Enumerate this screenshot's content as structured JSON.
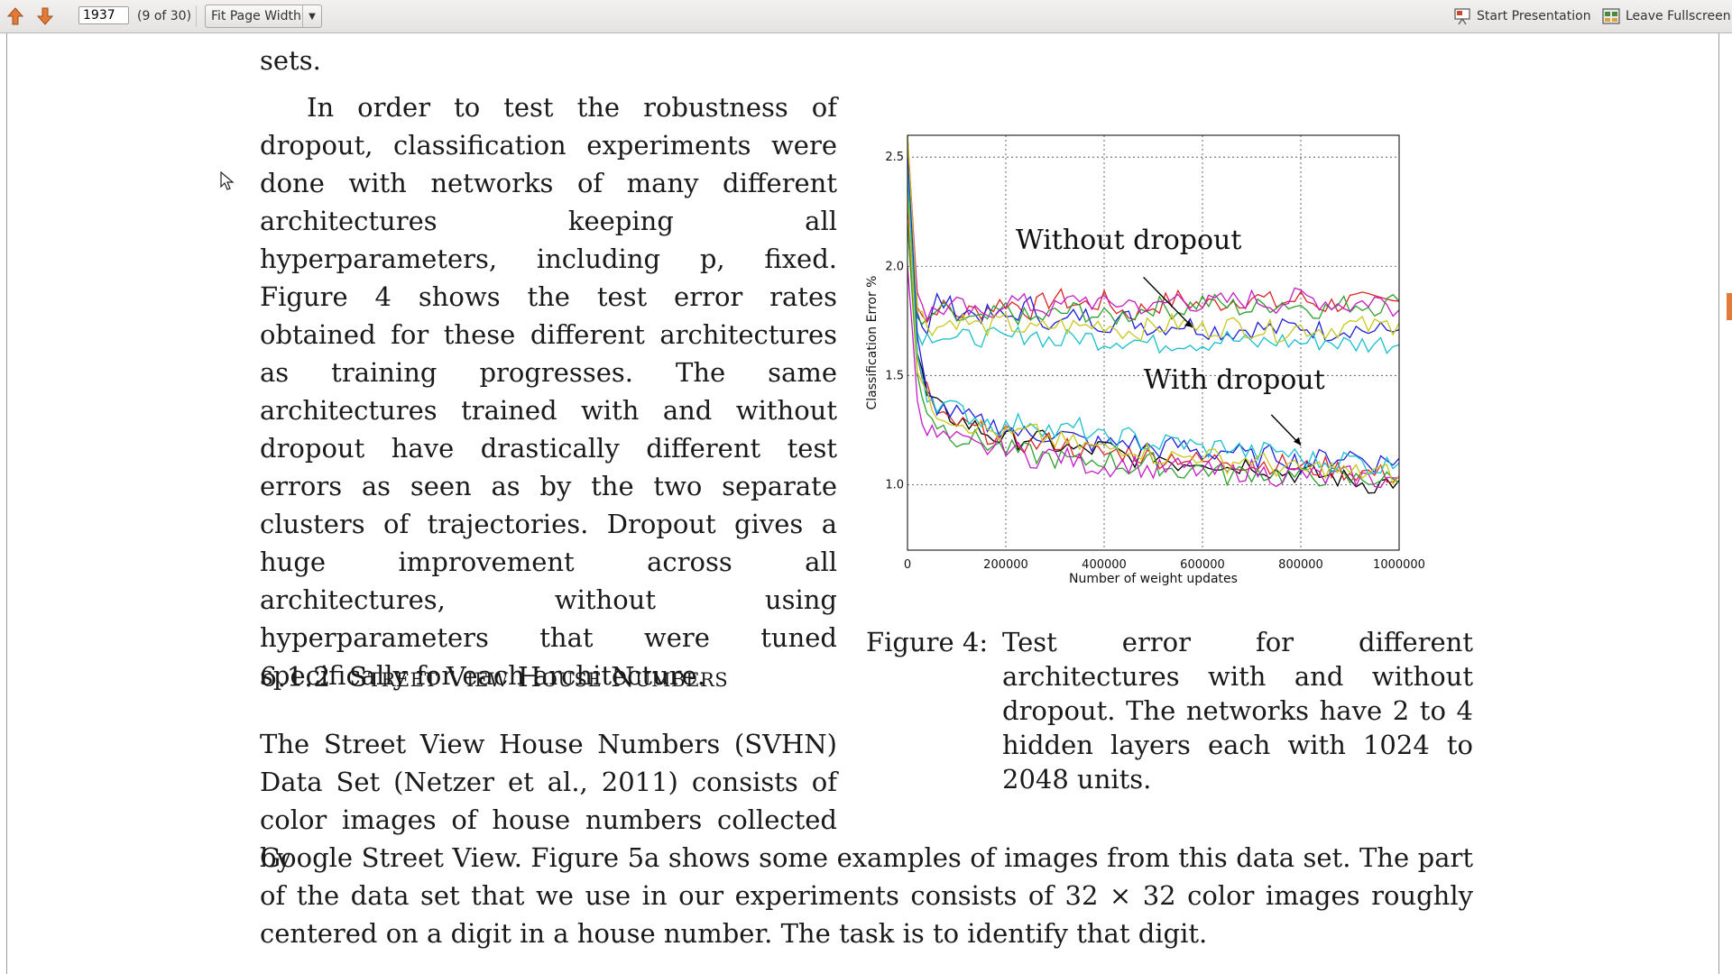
{
  "toolbar": {
    "page_value": "1937",
    "page_count": "(9 of 30)",
    "zoom_label": "Fit Page Width",
    "start_presentation": "Start Presentation",
    "leave_fullscreen": "Leave Fullscreen",
    "icons": [
      "arrow-up-icon",
      "arrow-down-icon",
      "presentation-icon",
      "fullscreen-icon"
    ],
    "accent": "#e07b39"
  },
  "document": {
    "line_top": "sets.",
    "para1": "In order to test the robustness of dropout, classification experiments were done with networks of many different architectures keeping all hyperparameters, including p, fixed. Figure 4 shows the test error rates obtained for these different architectures as training progresses. The same architectures trained with and without dropout have drastically different test errors as seen as by the two separate clusters of trajectories. Dropout gives a huge improvement across all architectures, without using hyperparameters that were tuned specifically for each architecture.",
    "section_num": "6.1.2",
    "section_title": "Street View House Numbers",
    "para2_left": "The Street View House Numbers (SVHN) Data Set (Netzer et al., 2011) consists of color images of house numbers collected by",
    "para2_full": "Google Street View. Figure 5a shows some examples of images from this data set. The part of the data set that we use in our experiments consists of 32 × 32 color images roughly centered on a digit in a house number. The task is to identify that digit.",
    "caption_label": "Figure 4:",
    "caption_text": "Test error for different architectures with and without dropout. The networks have 2 to 4 hidden layers each with 1024 to 2048 units."
  },
  "chart_data": {
    "type": "line",
    "title": "",
    "xlabel": "Number of weight updates",
    "ylabel": "Classification Error %",
    "xlim": [
      0,
      1000000
    ],
    "ylim": [
      0.7,
      2.6
    ],
    "xticks": [
      "0",
      "200000",
      "400000",
      "600000",
      "800000",
      "1000000"
    ],
    "yticks": [
      "1.0",
      "1.5",
      "2.0",
      "2.5"
    ],
    "grid": true,
    "annotations": [
      "Without dropout",
      "With dropout"
    ],
    "colors": [
      "#d62728",
      "#1f1fd6",
      "#2ca02c",
      "#c51bc5",
      "#17bfcf",
      "#c8c81a",
      "#000000"
    ],
    "series": [
      {
        "group": "without",
        "x": [
          0,
          20000,
          40000,
          60000,
          100000,
          150000,
          200000,
          250000,
          300000,
          350000,
          400000,
          450000,
          500000,
          550000,
          600000,
          650000,
          700000,
          750000,
          800000,
          850000,
          900000,
          950000,
          1000000
        ],
        "values": [
          2.6,
          1.85,
          1.75,
          1.82,
          1.78,
          1.8,
          1.84,
          1.8,
          1.86,
          1.82,
          1.84,
          1.78,
          1.82,
          1.85,
          1.82,
          1.84,
          1.86,
          1.83,
          1.85,
          1.82,
          1.84,
          1.83,
          1.84
        ]
      },
      {
        "group": "without",
        "x": [
          0,
          20000,
          40000,
          60000,
          100000,
          150000,
          200000,
          250000,
          300000,
          350000,
          400000,
          450000,
          500000,
          550000,
          600000,
          650000,
          700000,
          750000,
          800000,
          850000,
          900000,
          950000,
          1000000
        ],
        "values": [
          2.5,
          1.8,
          1.7,
          1.85,
          1.8,
          1.78,
          1.76,
          1.82,
          1.72,
          1.78,
          1.74,
          1.76,
          1.72,
          1.74,
          1.72,
          1.7,
          1.72,
          1.71,
          1.73,
          1.7,
          1.72,
          1.7,
          1.71
        ]
      },
      {
        "group": "without",
        "x": [
          0,
          20000,
          40000,
          60000,
          100000,
          150000,
          200000,
          250000,
          300000,
          350000,
          400000,
          450000,
          500000,
          550000,
          600000,
          650000,
          700000,
          750000,
          800000,
          850000,
          900000,
          950000,
          1000000
        ],
        "values": [
          2.4,
          1.75,
          1.72,
          1.8,
          1.76,
          1.74,
          1.8,
          1.75,
          1.78,
          1.8,
          1.76,
          1.78,
          1.82,
          1.8,
          1.84,
          1.82,
          1.8,
          1.84,
          1.82,
          1.8,
          1.83,
          1.82,
          1.84
        ]
      },
      {
        "group": "without",
        "x": [
          0,
          20000,
          40000,
          60000,
          100000,
          150000,
          200000,
          250000,
          300000,
          350000,
          400000,
          450000,
          500000,
          550000,
          600000,
          650000,
          700000,
          750000,
          800000,
          850000,
          900000,
          950000,
          1000000
        ],
        "values": [
          2.55,
          1.9,
          1.78,
          1.8,
          1.82,
          1.76,
          1.85,
          1.82,
          1.8,
          1.86,
          1.82,
          1.84,
          1.8,
          1.86,
          1.82,
          1.84,
          1.85,
          1.83,
          1.86,
          1.84,
          1.82,
          1.85,
          1.8
        ]
      },
      {
        "group": "without",
        "x": [
          0,
          20000,
          40000,
          60000,
          100000,
          150000,
          200000,
          250000,
          300000,
          350000,
          400000,
          450000,
          500000,
          550000,
          600000,
          650000,
          700000,
          750000,
          800000,
          850000,
          900000,
          950000,
          1000000
        ],
        "values": [
          2.3,
          1.7,
          1.68,
          1.7,
          1.66,
          1.68,
          1.66,
          1.7,
          1.65,
          1.68,
          1.66,
          1.67,
          1.64,
          1.66,
          1.65,
          1.67,
          1.64,
          1.66,
          1.65,
          1.66,
          1.64,
          1.65,
          1.64
        ]
      },
      {
        "group": "without",
        "x": [
          0,
          20000,
          40000,
          60000,
          100000,
          150000,
          200000,
          250000,
          300000,
          350000,
          400000,
          450000,
          500000,
          550000,
          600000,
          650000,
          700000,
          750000,
          800000,
          850000,
          900000,
          950000,
          1000000
        ],
        "values": [
          2.6,
          1.8,
          1.74,
          1.72,
          1.76,
          1.72,
          1.74,
          1.7,
          1.73,
          1.72,
          1.74,
          1.7,
          1.72,
          1.74,
          1.71,
          1.73,
          1.72,
          1.7,
          1.72,
          1.71,
          1.73,
          1.72,
          1.74
        ]
      },
      {
        "group": "with",
        "x": [
          0,
          20000,
          40000,
          60000,
          100000,
          150000,
          200000,
          250000,
          300000,
          350000,
          400000,
          450000,
          500000,
          550000,
          600000,
          650000,
          700000,
          750000,
          800000,
          850000,
          900000,
          950000,
          1000000
        ],
        "values": [
          2.4,
          1.6,
          1.4,
          1.35,
          1.3,
          1.25,
          1.2,
          1.22,
          1.18,
          1.15,
          1.17,
          1.12,
          1.14,
          1.1,
          1.12,
          1.08,
          1.1,
          1.06,
          1.05,
          1.04,
          1.02,
          1.0,
          1.02
        ]
      },
      {
        "group": "with",
        "x": [
          0,
          20000,
          40000,
          60000,
          100000,
          150000,
          200000,
          250000,
          300000,
          350000,
          400000,
          450000,
          500000,
          550000,
          600000,
          650000,
          700000,
          750000,
          800000,
          850000,
          900000,
          950000,
          1000000
        ],
        "values": [
          2.3,
          1.55,
          1.45,
          1.3,
          1.28,
          1.24,
          1.22,
          1.18,
          1.2,
          1.16,
          1.14,
          1.15,
          1.12,
          1.13,
          1.1,
          1.12,
          1.09,
          1.1,
          1.07,
          1.08,
          1.06,
          1.05,
          1.04
        ]
      },
      {
        "group": "with",
        "x": [
          0,
          20000,
          40000,
          60000,
          100000,
          150000,
          200000,
          250000,
          300000,
          350000,
          400000,
          450000,
          500000,
          550000,
          600000,
          650000,
          700000,
          750000,
          800000,
          850000,
          900000,
          950000,
          1000000
        ],
        "values": [
          2.5,
          1.65,
          1.4,
          1.36,
          1.32,
          1.28,
          1.26,
          1.22,
          1.24,
          1.2,
          1.18,
          1.2,
          1.16,
          1.18,
          1.14,
          1.16,
          1.12,
          1.14,
          1.1,
          1.12,
          1.14,
          1.1,
          1.12
        ]
      },
      {
        "group": "with",
        "x": [
          0,
          20000,
          40000,
          60000,
          100000,
          150000,
          200000,
          250000,
          300000,
          350000,
          400000,
          450000,
          500000,
          550000,
          600000,
          650000,
          700000,
          750000,
          800000,
          850000,
          900000,
          950000,
          1000000
        ],
        "values": [
          2.2,
          1.5,
          1.35,
          1.28,
          1.22,
          1.2,
          1.16,
          1.14,
          1.12,
          1.1,
          1.12,
          1.08,
          1.1,
          1.06,
          1.08,
          1.04,
          1.06,
          1.05,
          1.03,
          1.04,
          1.02,
          1.03,
          1.01
        ]
      },
      {
        "group": "with",
        "x": [
          0,
          20000,
          40000,
          60000,
          100000,
          150000,
          200000,
          250000,
          300000,
          350000,
          400000,
          450000,
          500000,
          550000,
          600000,
          650000,
          700000,
          750000,
          800000,
          850000,
          900000,
          950000,
          1000000
        ],
        "values": [
          2.0,
          1.4,
          1.25,
          1.22,
          1.2,
          1.16,
          1.18,
          1.12,
          1.14,
          1.1,
          1.08,
          1.1,
          1.06,
          1.08,
          1.06,
          1.05,
          1.07,
          1.04,
          1.05,
          1.03,
          1.04,
          1.02,
          1.03
        ]
      },
      {
        "group": "with",
        "x": [
          0,
          20000,
          40000,
          60000,
          100000,
          150000,
          200000,
          250000,
          300000,
          350000,
          400000,
          450000,
          500000,
          550000,
          600000,
          650000,
          700000,
          750000,
          800000,
          850000,
          900000,
          950000,
          1000000
        ],
        "values": [
          2.45,
          1.6,
          1.42,
          1.38,
          1.34,
          1.3,
          1.26,
          1.3,
          1.24,
          1.26,
          1.2,
          1.22,
          1.18,
          1.2,
          1.16,
          1.18,
          1.14,
          1.16,
          1.12,
          1.1,
          1.12,
          1.08,
          1.1
        ]
      },
      {
        "group": "with",
        "x": [
          0,
          20000,
          40000,
          60000,
          100000,
          150000,
          200000,
          250000,
          300000,
          350000,
          400000,
          450000,
          500000,
          550000,
          600000,
          650000,
          700000,
          750000,
          800000,
          850000,
          900000,
          950000,
          1000000
        ],
        "values": [
          2.35,
          1.55,
          1.38,
          1.34,
          1.3,
          1.26,
          1.22,
          1.24,
          1.2,
          1.18,
          1.16,
          1.18,
          1.14,
          1.12,
          1.14,
          1.1,
          1.12,
          1.08,
          1.06,
          1.08,
          1.05,
          1.06,
          1.04
        ]
      }
    ]
  }
}
